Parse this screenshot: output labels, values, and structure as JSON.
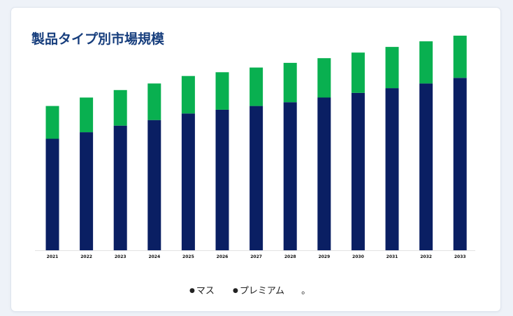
{
  "chart_data": {
    "type": "bar",
    "stacked": true,
    "title": "製品タイプ別市場規模",
    "categories": [
      "2021",
      "2022",
      "2023",
      "2024",
      "2025",
      "2026",
      "2027",
      "2028",
      "2029",
      "2030",
      "2031",
      "2032",
      "2033"
    ],
    "series": [
      {
        "name": "マス",
        "color": "#0a1f63",
        "values": [
          119,
          126,
          133,
          139,
          146,
          150,
          154,
          158,
          163,
          168,
          173,
          178,
          184
        ]
      },
      {
        "name": "プレミアム",
        "color": "#09b050",
        "values": [
          35,
          37,
          38,
          39,
          40,
          40,
          41,
          42,
          42,
          43,
          44,
          45,
          45
        ]
      }
    ],
    "ylim": [
      0,
      235
    ],
    "grid": false,
    "legend_position": "bottom",
    "legend_trailing_mark": "。"
  }
}
